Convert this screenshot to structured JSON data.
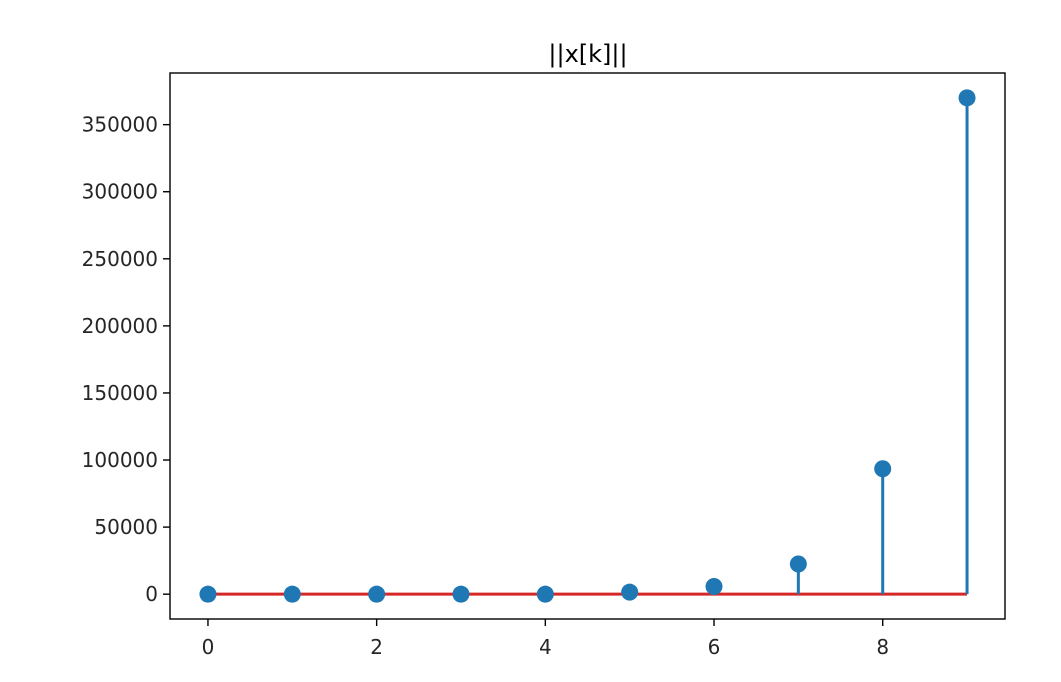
{
  "chart_data": {
    "type": "stem",
    "title": "||x[k]||",
    "xlabel": "",
    "ylabel": "",
    "x": [
      0,
      1,
      2,
      3,
      4,
      5,
      6,
      7,
      8,
      9
    ],
    "values": [
      0,
      0,
      0,
      0,
      0,
      1500,
      5700,
      22500,
      93500,
      370000
    ],
    "xlim": [
      -0.45,
      9.45
    ],
    "ylim": [
      -18500,
      388500
    ],
    "xticks": [
      0,
      2,
      4,
      6,
      8
    ],
    "xtick_labels": [
      "0",
      "2",
      "4",
      "6",
      "8"
    ],
    "yticks": [
      0,
      50000,
      100000,
      150000,
      200000,
      250000,
      300000,
      350000
    ],
    "ytick_labels": [
      "0",
      "50000",
      "100000",
      "150000",
      "200000",
      "250000",
      "300000",
      "350000"
    ],
    "grid": false,
    "colors": {
      "stem": "#1f77b4",
      "baseline": "#d62728",
      "axes": "#000000",
      "text": "#262626"
    }
  }
}
